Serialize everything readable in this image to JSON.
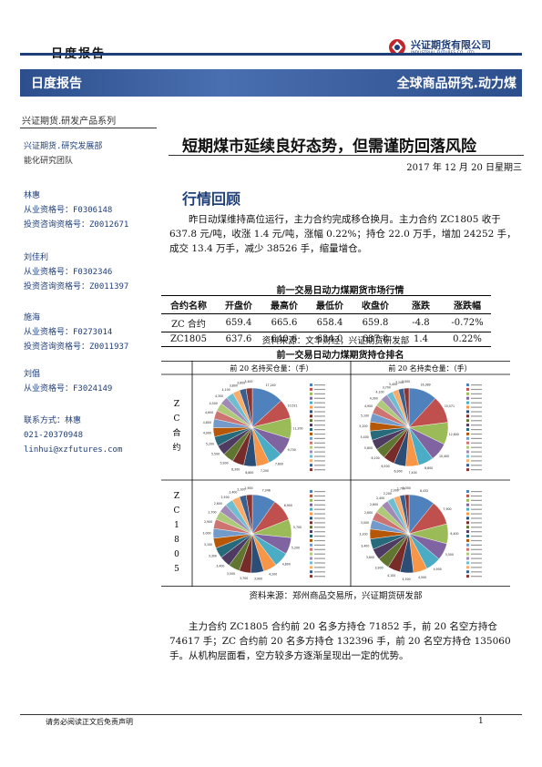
{
  "header": {
    "report_type": "日度报告",
    "company_cn": "兴证期货有限公司",
    "company_en": "INDUSTRIAL FUTURES CO., LTD",
    "banner_left": "日度报告",
    "banner_right": "全球商品研究.动力煤",
    "series": "兴证期货.研发产品系列"
  },
  "sidebar": {
    "dept": "兴证期货.研究发展部",
    "team": "能化研究团队",
    "analysts": [
      {
        "name": "林惠",
        "lines": [
          "从业资格号：F0306148",
          "投资咨询资格号：Z0012671"
        ]
      },
      {
        "name": "刘佳利",
        "lines": [
          "从业资格号：F0302346",
          "投资咨询资格号：Z0011397"
        ]
      },
      {
        "name": "施海",
        "lines": [
          "从业资格号：F0273014",
          "投资咨询资格号：Z0011937"
        ]
      },
      {
        "name": "刘倡",
        "lines": [
          "从业资格号：F3024149"
        ]
      }
    ],
    "contact_label": "联系方式：林惠",
    "phone": "021-20370948",
    "email": "linhui@xzfutures.com"
  },
  "main": {
    "title": "短期煤市延续良好态势，但需谨防回落风险",
    "date": "2017 年 12 月 20 日星期三",
    "section": "行情回顾",
    "para1": "昨日动煤维持高位运行，主力合约完成移仓换月。主力合约 ZC1805 收于 637.8 元/吨，收涨 1.4 元/吨，涨幅 0.22%；持仓 22.0 万手，增加 24252 手，成交 13.4 万手，减少 38526 手，缩量增仓。",
    "table_title": "前一交易日动力煤期货市场行情",
    "table_headers": [
      "合约名称",
      "开盘价",
      "最高价",
      "最低价",
      "收盘价",
      "涨跌",
      "涨跌幅"
    ],
    "table_rows": [
      [
        "ZC 合约",
        "659.4",
        "665.6",
        "658.4",
        "659.8",
        "-4.8",
        "-0.72%"
      ],
      [
        "ZC1805",
        "637.6",
        "640.6",
        "634.0",
        "637.8",
        "1.4",
        "0.22%"
      ]
    ],
    "table_source": "资料来源：文华财经，兴证期货研发部",
    "chart_title": "前一交易日动力煤期货持仓排名",
    "col_buy": "前 20 名持买仓量：（手）",
    "col_sell": "前 20 名持卖仓量：（手）",
    "row1_label": [
      "Z",
      "C",
      "合",
      "约"
    ],
    "row2_label": [
      "Z",
      "C",
      "1",
      "8",
      "0",
      "5"
    ],
    "chart_source": "资料来源：郑州商品交易所，兴证期货研发部",
    "para2": "主力合约 ZC1805 合约前 20 名多方持仓 71852 手，前 20 名空方持仓 74617 手；ZC 合约前 20 名多方持仓 132396 手，前 20 名空方持仓 135060 手。从机构层面看，空方较多方逐渐呈现出一定的优势。"
  },
  "chart_data": {
    "type": "pie",
    "title": "前一交易日动力煤期货持仓排名",
    "note": "四个饼图：ZC合约与ZC1805的前20名持买/持卖仓量，扇区值为近似读数（手）",
    "colors": [
      "#4f81bd",
      "#c0504d",
      "#9bbb59",
      "#8064a2",
      "#4bacc6",
      "#f79646",
      "#2c4d75",
      "#772c2a",
      "#5f7530",
      "#4d3b62",
      "#276a7c",
      "#b65708",
      "#729aca",
      "#cd7371",
      "#afc97a",
      "#a08bb6",
      "#6fbdd1",
      "#f9ab6b",
      "#3a5f8f",
      "#8a3532"
    ],
    "pies": [
      {
        "name": "ZC合约 持买",
        "values": [
          17240,
          10521,
          11200,
          9700,
          7600,
          7200,
          6800,
          6300,
          5900,
          5500,
          5200,
          4900,
          4800,
          4600,
          4500,
          4300,
          4100,
          3800,
          3600,
          3400
        ]
      },
      {
        "name": "ZC合约 持卖",
        "values": [
          16389,
          15571,
          12800,
          10400,
          8800,
          7400,
          6900,
          6500,
          6100,
          5800,
          5400,
          5200,
          5100,
          4900,
          4300,
          4100,
          3700,
          3400,
          3200,
          3000
        ]
      },
      {
        "name": "ZC1805 持买",
        "values": [
          7346,
          6900,
          5700,
          5200,
          4600,
          4200,
          3900,
          3700,
          3500,
          3400,
          3300,
          3100,
          3000,
          2900,
          2700,
          2600,
          2500,
          2400,
          2100,
          1900
        ]
      },
      {
        "name": "ZC1805 持卖",
        "values": [
          8432,
          7900,
          6400,
          5500,
          4900,
          4500,
          4300,
          4100,
          3900,
          3600,
          3400,
          3200,
          3000,
          2800,
          2600,
          2400,
          2200,
          2000,
          1700,
          1300
        ]
      }
    ]
  },
  "footer": {
    "disclaimer": "请务必阅读正文后免责声明",
    "page": "1"
  }
}
